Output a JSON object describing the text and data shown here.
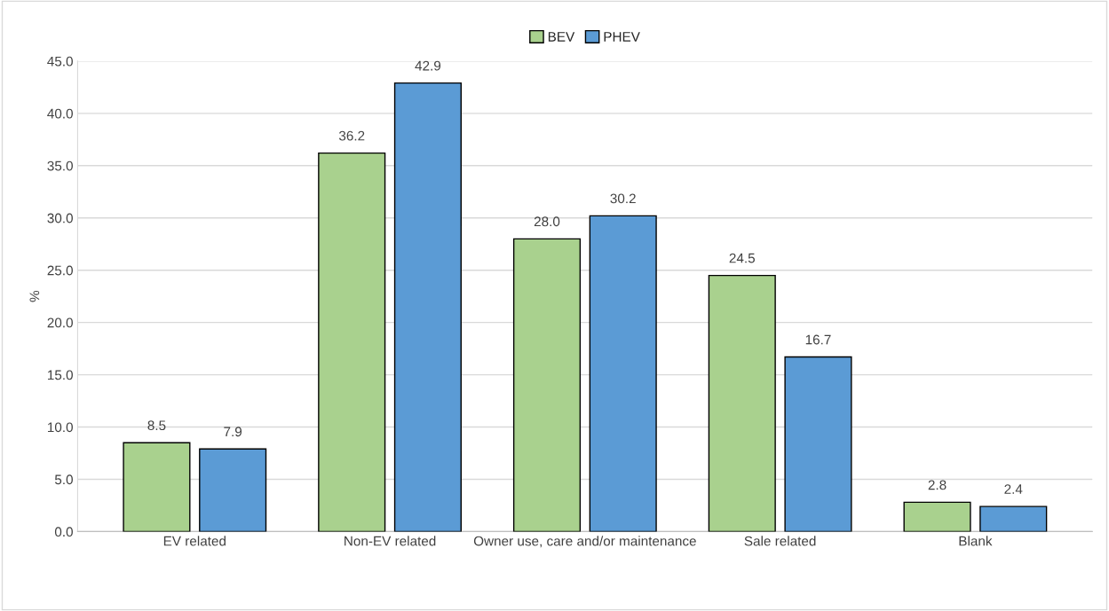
{
  "chart_data": {
    "type": "bar",
    "categories": [
      "EV related",
      "Non-EV related",
      "Owner use, care and/or maintenance",
      "Sale related",
      "Blank"
    ],
    "series": [
      {
        "name": "BEV",
        "color": "#a9d18e",
        "values": [
          8.5,
          36.2,
          28.0,
          24.5,
          2.8
        ],
        "value_labels": [
          "8.5",
          "36.2",
          "28.0",
          "24.5",
          "2.8"
        ]
      },
      {
        "name": "PHEV",
        "color": "#5b9bd5",
        "values": [
          7.9,
          42.9,
          30.2,
          16.7,
          2.4
        ],
        "value_labels": [
          "7.9",
          "42.9",
          "30.2",
          "16.7",
          "2.4"
        ]
      }
    ],
    "ylabel": "%",
    "ylim": [
      0,
      45
    ],
    "yticks": [
      {
        "value": 0,
        "label": "0.0"
      },
      {
        "value": 5,
        "label": "5.0"
      },
      {
        "value": 10,
        "label": "10.0"
      },
      {
        "value": 15,
        "label": "15.0"
      },
      {
        "value": 20,
        "label": "20.0"
      },
      {
        "value": 25,
        "label": "25.0"
      },
      {
        "value": 30,
        "label": "30.0"
      },
      {
        "value": 35,
        "label": "35.0"
      },
      {
        "value": 40,
        "label": "40.0"
      },
      {
        "value": 45,
        "label": "45.0"
      }
    ],
    "grid": "y",
    "legend": "top"
  }
}
